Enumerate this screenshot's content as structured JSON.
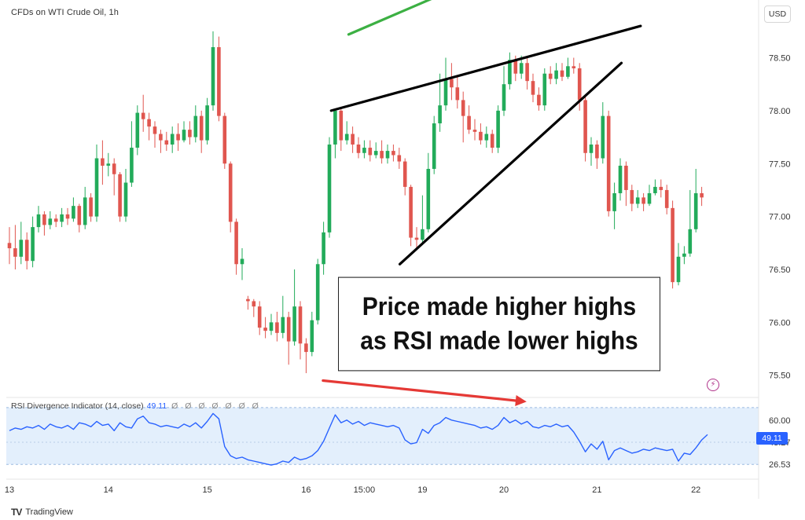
{
  "header": {
    "symbol_title": "CFDs on WTI Crude Oil, 1h",
    "currency_button": "USD"
  },
  "callout": {
    "line1": "Price made higher highs",
    "line2": "as RSI made lower highs"
  },
  "rsi_header": {
    "name": "RSI Divergence Indicator (14, close)",
    "value": "49.11",
    "ghost_values": "Ø Ø Ø Ø Ø Ø Ø"
  },
  "rsi_badge": "49.11",
  "branding": {
    "logo": "TV",
    "name": "TradingView"
  },
  "colors": {
    "up": "#22ab5a",
    "down": "#e0564f",
    "rsi_line": "#2962ff",
    "rsi_band": "#e3effc",
    "green_arrow": "#3cb043",
    "red_arrow": "#e53935",
    "trendline": "#000000"
  },
  "chart_data": [
    {
      "type": "candlestick",
      "name": "price",
      "y_axis_ticks": [
        78.5,
        78.0,
        77.5,
        77.0,
        76.5,
        76.0,
        75.5
      ],
      "ylim": [
        75.32,
        78.86
      ],
      "x_tick_labels": [
        "13",
        "14",
        "15",
        "16",
        "15:00",
        "19",
        "20",
        "21",
        "22"
      ],
      "x_tick_positions": [
        0,
        17,
        34,
        51,
        61,
        71,
        85,
        101,
        118
      ],
      "candles": [
        [
          76.75,
          76.7,
          76.9,
          76.55
        ],
        [
          76.7,
          76.62,
          76.92,
          76.5
        ],
        [
          76.62,
          76.78,
          76.95,
          76.55
        ],
        [
          76.78,
          76.58,
          76.85,
          76.5
        ],
        [
          76.58,
          76.9,
          77.0,
          76.52
        ],
        [
          76.9,
          77.02,
          77.1,
          76.85
        ],
        [
          77.02,
          76.92,
          77.05,
          76.82
        ],
        [
          76.92,
          76.98,
          77.05,
          76.88
        ],
        [
          76.98,
          76.95,
          77.02,
          76.9
        ],
        [
          76.95,
          77.02,
          77.08,
          76.9
        ],
        [
          77.02,
          76.98,
          77.08,
          76.92
        ],
        [
          76.98,
          77.1,
          77.18,
          76.95
        ],
        [
          77.1,
          76.92,
          77.12,
          76.85
        ],
        [
          76.92,
          77.18,
          77.28,
          76.88
        ],
        [
          77.18,
          77.0,
          77.22,
          76.95
        ],
        [
          77.0,
          77.55,
          77.68,
          76.95
        ],
        [
          77.55,
          77.48,
          77.72,
          77.3
        ],
        [
          77.48,
          77.5,
          77.6,
          77.38
        ],
        [
          77.5,
          77.4,
          77.55,
          77.2
        ],
        [
          77.4,
          77.0,
          77.42,
          76.95
        ],
        [
          77.0,
          77.32,
          77.45,
          76.95
        ],
        [
          77.32,
          77.65,
          77.9,
          77.28
        ],
        [
          77.65,
          77.98,
          78.05,
          77.58
        ],
        [
          77.98,
          77.92,
          78.15,
          77.8
        ],
        [
          77.92,
          77.85,
          77.98,
          77.72
        ],
        [
          77.85,
          77.78,
          77.9,
          77.65
        ],
        [
          77.78,
          77.72,
          77.82,
          77.6
        ],
        [
          77.72,
          77.68,
          77.8,
          77.62
        ],
        [
          77.68,
          77.78,
          77.85,
          77.6
        ],
        [
          77.78,
          77.72,
          77.88,
          77.62
        ],
        [
          77.72,
          77.82,
          77.9,
          77.7
        ],
        [
          77.82,
          77.75,
          77.9,
          77.68
        ],
        [
          77.75,
          77.95,
          78.05,
          77.7
        ],
        [
          77.95,
          77.72,
          78.0,
          77.6
        ],
        [
          77.72,
          78.05,
          78.12,
          77.68
        ],
        [
          78.05,
          78.6,
          78.75,
          78.0
        ],
        [
          78.6,
          77.95,
          78.7,
          77.9
        ],
        [
          77.95,
          77.5,
          77.98,
          77.45
        ],
        [
          77.5,
          76.95,
          77.52,
          76.85
        ],
        [
          76.95,
          76.55,
          76.98,
          76.45
        ],
        [
          76.55,
          76.6,
          76.7,
          76.4
        ],
        [
          76.22,
          76.2,
          76.25,
          76.12
        ],
        [
          76.2,
          76.15,
          76.22,
          76.05
        ],
        [
          76.15,
          75.95,
          76.2,
          75.88
        ],
        [
          75.95,
          75.92,
          76.05,
          75.85
        ],
        [
          75.92,
          76.0,
          76.08,
          75.88
        ],
        [
          76.0,
          75.9,
          76.1,
          75.82
        ],
        [
          75.9,
          76.05,
          76.25,
          75.85
        ],
        [
          76.05,
          75.82,
          76.1,
          75.6
        ],
        [
          75.82,
          76.15,
          76.5,
          75.78
        ],
        [
          76.15,
          75.8,
          76.2,
          75.65
        ],
        [
          75.8,
          75.72,
          75.85,
          75.52
        ],
        [
          75.72,
          76.02,
          76.1,
          75.68
        ],
        [
          76.02,
          76.55,
          76.6,
          75.98
        ],
        [
          76.55,
          76.85,
          76.95,
          76.45
        ],
        [
          76.85,
          77.68,
          77.75,
          76.8
        ],
        [
          77.68,
          78.0,
          78.02,
          77.55
        ],
        [
          78.0,
          77.72,
          78.02,
          77.62
        ],
        [
          77.72,
          77.78,
          77.9,
          77.68
        ],
        [
          77.78,
          77.68,
          77.85,
          77.6
        ],
        [
          77.68,
          77.6,
          77.75,
          77.55
        ],
        [
          77.6,
          77.65,
          77.72,
          77.55
        ],
        [
          77.65,
          77.58,
          77.72,
          77.52
        ],
        [
          77.58,
          77.62,
          77.7,
          77.55
        ],
        [
          77.62,
          77.55,
          77.72,
          77.5
        ],
        [
          77.55,
          77.62,
          77.68,
          77.5
        ],
        [
          77.62,
          77.58,
          77.68,
          77.52
        ],
        [
          77.58,
          77.52,
          77.65,
          77.45
        ],
        [
          77.52,
          77.28,
          77.55,
          77.2
        ],
        [
          77.28,
          76.8,
          77.3,
          76.72
        ],
        [
          76.8,
          76.78,
          76.9,
          76.7
        ],
        [
          76.78,
          76.88,
          77.2,
          76.75
        ],
        [
          76.88,
          77.45,
          77.6,
          76.85
        ],
        [
          77.45,
          77.88,
          77.95,
          77.4
        ],
        [
          77.88,
          78.05,
          78.35,
          77.8
        ],
        [
          78.05,
          78.3,
          78.5,
          78.0
        ],
        [
          78.3,
          78.22,
          78.45,
          78.1
        ],
        [
          78.22,
          78.1,
          78.32,
          78.02
        ],
        [
          78.1,
          77.95,
          78.18,
          77.7
        ],
        [
          77.95,
          77.82,
          78.05,
          77.78
        ],
        [
          77.82,
          77.8,
          77.92,
          77.72
        ],
        [
          77.8,
          77.72,
          77.88,
          77.68
        ],
        [
          77.72,
          77.78,
          77.85,
          77.65
        ],
        [
          77.78,
          77.65,
          77.82,
          77.6
        ],
        [
          77.65,
          78.0,
          78.05,
          77.6
        ],
        [
          78.0,
          78.25,
          78.42,
          77.95
        ],
        [
          78.25,
          78.48,
          78.55,
          78.2
        ],
        [
          78.48,
          78.35,
          78.52,
          78.28
        ],
        [
          78.35,
          78.45,
          78.52,
          78.3
        ],
        [
          78.45,
          78.28,
          78.5,
          78.2
        ],
        [
          78.28,
          78.15,
          78.35,
          78.08
        ],
        [
          78.15,
          78.05,
          78.22,
          78.0
        ],
        [
          78.05,
          78.35,
          78.4,
          78.0
        ],
        [
          78.35,
          78.3,
          78.42,
          78.25
        ],
        [
          78.3,
          78.38,
          78.45,
          78.25
        ],
        [
          78.38,
          78.32,
          78.45,
          78.28
        ],
        [
          78.32,
          78.42,
          78.5,
          78.3
        ],
        [
          78.42,
          78.4,
          78.5,
          78.35
        ],
        [
          78.4,
          78.1,
          78.45,
          78.0
        ],
        [
          78.1,
          77.6,
          78.15,
          77.52
        ],
        [
          77.6,
          77.68,
          77.75,
          77.48
        ],
        [
          77.68,
          77.55,
          77.72,
          77.45
        ],
        [
          77.55,
          77.95,
          78.08,
          77.5
        ],
        [
          77.95,
          77.05,
          78.0,
          77.0
        ],
        [
          77.05,
          77.22,
          77.32,
          76.88
        ],
        [
          77.22,
          77.48,
          77.55,
          77.15
        ],
        [
          77.48,
          77.25,
          77.52,
          77.1
        ],
        [
          77.25,
          77.12,
          77.3,
          77.05
        ],
        [
          77.12,
          77.18,
          77.25,
          77.08
        ],
        [
          77.18,
          77.12,
          77.22,
          77.05
        ],
        [
          77.12,
          77.22,
          77.3,
          77.1
        ],
        [
          77.22,
          77.28,
          77.35,
          77.2
        ],
        [
          77.28,
          77.25,
          77.35,
          77.18
        ],
        [
          77.25,
          77.08,
          77.3,
          77.02
        ],
        [
          77.08,
          76.38,
          77.15,
          76.32
        ],
        [
          76.38,
          76.62,
          76.75,
          76.35
        ],
        [
          76.62,
          76.65,
          76.72,
          76.55
        ],
        [
          76.65,
          76.88,
          77.25,
          76.62
        ],
        [
          76.88,
          77.22,
          77.45,
          76.85
        ],
        [
          77.22,
          77.18,
          77.28,
          77.1
        ]
      ],
      "annotations": {
        "trendline_upper": [
          [
            55.3,
            78.0
          ],
          [
            108.5,
            78.8
          ]
        ],
        "trendline_lower": [
          [
            67.1,
            76.55
          ],
          [
            105.2,
            78.45
          ]
        ],
        "green_arrow": [
          [
            58.3,
            78.72
          ],
          [
            80.3,
            79.24
          ]
        ],
        "red_arrow": [
          [
            53.9,
            75.45
          ],
          [
            88.9,
            75.25
          ]
        ]
      }
    },
    {
      "type": "line",
      "name": "RSI",
      "y_axis_ticks": [
        60.0,
        43.27,
        26.53
      ],
      "ylim": [
        21.3,
        70.0
      ],
      "band": [
        26.53,
        69.5
      ],
      "values": [
        52,
        54,
        53,
        55,
        54,
        56,
        53,
        57,
        55,
        54,
        56,
        53,
        58,
        57,
        55,
        59,
        56,
        57,
        52,
        58,
        55,
        54,
        61,
        63,
        58,
        57,
        55,
        56,
        55,
        54,
        57,
        55,
        58,
        54,
        59,
        65,
        61,
        40,
        33,
        31,
        32,
        30,
        29,
        28,
        27,
        26,
        27,
        29,
        28,
        32,
        30,
        31,
        33,
        37,
        44,
        54,
        64,
        58,
        60,
        57,
        59,
        56,
        58,
        57,
        56,
        55,
        56,
        54,
        45,
        42,
        43,
        53,
        50,
        56,
        58,
        62,
        60,
        59,
        58,
        57,
        56,
        54,
        55,
        53,
        56,
        62,
        58,
        60,
        57,
        59,
        55,
        54,
        56,
        55,
        57,
        55,
        56,
        51,
        44,
        36,
        42,
        38,
        44,
        30,
        37,
        39,
        37,
        35,
        36,
        38,
        37,
        39,
        38,
        37,
        38,
        29,
        35,
        34,
        39,
        45,
        49.11
      ]
    }
  ]
}
